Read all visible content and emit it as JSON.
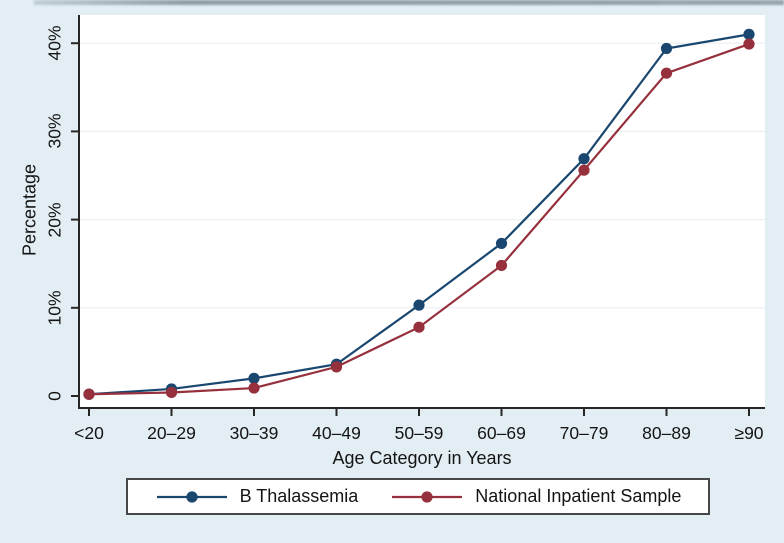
{
  "figure": {
    "background_color": "#e3eef4",
    "plot_background": "#ffffff",
    "axis_color": "#262626",
    "gridline_color": "#edf1f4",
    "legend_border_color": "#474747"
  },
  "chart_data": {
    "type": "line",
    "title": "",
    "xlabel": "Age Category in Years",
    "ylabel": "Percentage",
    "categories": [
      "<20",
      "20–29",
      "30–39",
      "40–49",
      "50–59",
      "60–69",
      "70–79",
      "80–89",
      "≥90"
    ],
    "y_ticks": [
      0,
      10,
      20,
      30,
      40
    ],
    "y_tick_labels": [
      "0",
      "10%",
      "20%",
      "30%",
      "40%"
    ],
    "ylim": [
      0,
      43
    ],
    "grid": true,
    "legend_position": "bottom",
    "series": [
      {
        "name": "B Thalassemia",
        "color": "#1a476f",
        "values": [
          0.2,
          0.8,
          2.0,
          3.6,
          10.3,
          17.3,
          26.9,
          39.4,
          41.0
        ]
      },
      {
        "name": "National Inpatient Sample",
        "color": "#96303c",
        "values": [
          0.2,
          0.4,
          0.9,
          3.3,
          7.8,
          14.8,
          25.6,
          36.6,
          39.9
        ]
      }
    ]
  }
}
